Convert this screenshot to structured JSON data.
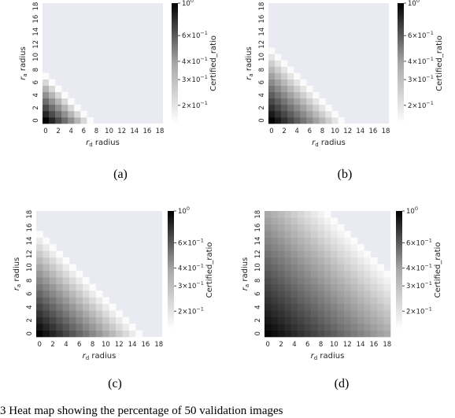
{
  "chart_data": [
    {
      "type": "heatmap",
      "caption": "(a)",
      "xlabel": "r_d radius",
      "ylabel": "r_a radius",
      "colorbar_label": "Certified_ratio",
      "colorbar_ticks": [
        "10^0",
        "6×10^-1",
        "4×10^-1",
        "3×10^-1",
        "2×10^-1"
      ],
      "scale": "log",
      "x_ticks": [
        "0",
        "2",
        "4",
        "6",
        "8",
        "10",
        "12",
        "14",
        "16",
        "18"
      ],
      "y_ticks": [
        "0",
        "2",
        "4",
        "6",
        "8",
        "10",
        "12",
        "14",
        "16",
        "18"
      ],
      "grid_size": 19,
      "max_radius": 7,
      "colormap": "gray_r",
      "background_color": "#eaeaf2"
    },
    {
      "type": "heatmap",
      "caption": "(b)",
      "xlabel": "r_d radius",
      "ylabel": "r_a radius",
      "colorbar_label": "Certified_ratio",
      "colorbar_ticks": [
        "10^0",
        "6×10^-1",
        "4×10^-1",
        "3×10^-1",
        "2×10^-1"
      ],
      "scale": "log",
      "x_ticks": [
        "0",
        "2",
        "4",
        "6",
        "8",
        "10",
        "12",
        "14",
        "16",
        "18"
      ],
      "y_ticks": [
        "0",
        "2",
        "4",
        "6",
        "8",
        "10",
        "12",
        "14",
        "16",
        "18"
      ],
      "grid_size": 19,
      "max_radius": 11,
      "colormap": "gray_r",
      "background_color": "#eaeaf2"
    },
    {
      "type": "heatmap",
      "caption": "(c)",
      "xlabel": "r_d radius",
      "ylabel": "r_a radius",
      "colorbar_label": "Certified_ratio",
      "colorbar_ticks": [
        "10^0",
        "6×10^-1",
        "4×10^-1",
        "3×10^-1",
        "2×10^-1"
      ],
      "scale": "log",
      "x_ticks": [
        "0",
        "2",
        "4",
        "6",
        "8",
        "10",
        "12",
        "14",
        "16",
        "18"
      ],
      "y_ticks": [
        "0",
        "2",
        "4",
        "6",
        "8",
        "10",
        "12",
        "14",
        "16",
        "18"
      ],
      "grid_size": 19,
      "max_radius": 15,
      "colormap": "gray_r",
      "background_color": "#eaeaf2"
    },
    {
      "type": "heatmap",
      "caption": "(d)",
      "xlabel": "r_d radius",
      "ylabel": "r_a radius",
      "colorbar_label": "Certified_ratio",
      "colorbar_ticks": [
        "10^0",
        "6×10^-1",
        "4×10^-1",
        "3×10^-1",
        "2×10^-1"
      ],
      "scale": "log",
      "x_ticks": [
        "0",
        "2",
        "4",
        "6",
        "8",
        "10",
        "12",
        "14",
        "16",
        "18"
      ],
      "y_ticks": [
        "0",
        "2",
        "4",
        "6",
        "8",
        "10",
        "12",
        "14",
        "16",
        "18"
      ],
      "grid_size": 19,
      "max_radius": 27,
      "colormap": "gray_r",
      "background_color": "#eaeaf2"
    }
  ],
  "bottom_text": "3    Heat map showing the percentage of 50 validation images"
}
